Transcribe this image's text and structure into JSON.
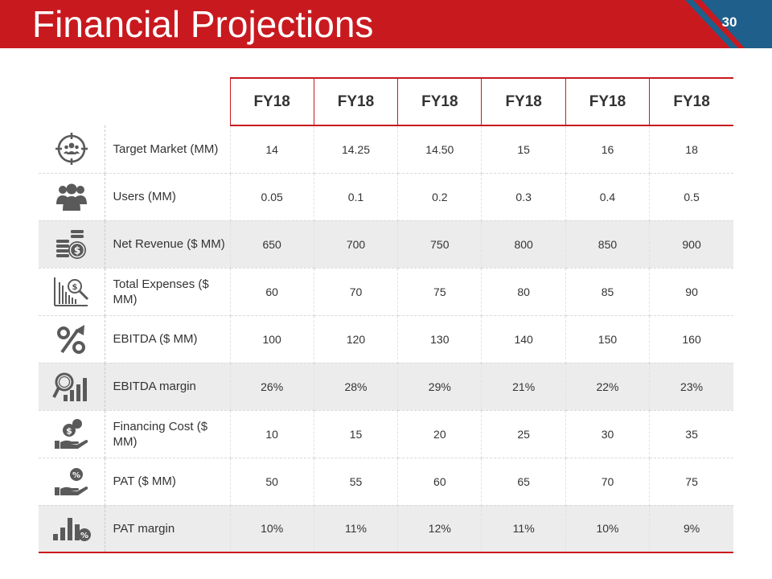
{
  "slide": {
    "title": "Financial Projections",
    "page_number": "30"
  },
  "colors": {
    "brand_red": "#c8191f",
    "corner_blue": "#1f5f8b",
    "shade_gray": "#ececec",
    "icon_gray": "#5a5a5a"
  },
  "table": {
    "columns": [
      "FY18",
      "FY18",
      "FY18",
      "FY18",
      "FY18",
      "FY18"
    ],
    "rows": [
      {
        "icon": "target-audience-icon",
        "label": "Target Market (MM)",
        "values": [
          "14",
          "14.25",
          "14.50",
          "15",
          "16",
          "18"
        ]
      },
      {
        "icon": "users-group-icon",
        "label": "Users (MM)",
        "values": [
          "0.05",
          "0.1",
          "0.2",
          "0.3",
          "0.4",
          "0.5"
        ]
      },
      {
        "icon": "coin-stack-icon",
        "label": "Net Revenue ($ MM)",
        "values": [
          "650",
          "700",
          "750",
          "800",
          "850",
          "900"
        ]
      },
      {
        "icon": "expense-chart-icon",
        "label": "Total Expenses ($ MM)",
        "values": [
          "60",
          "70",
          "75",
          "80",
          "85",
          "90"
        ]
      },
      {
        "icon": "percent-arrow-icon",
        "label": "EBITDA ($ MM)",
        "values": [
          "100",
          "120",
          "130",
          "140",
          "150",
          "160"
        ]
      },
      {
        "icon": "magnifier-bar-chart-icon",
        "label": "EBITDA margin",
        "values": [
          "26%",
          "28%",
          "29%",
          "21%",
          "22%",
          "23%"
        ]
      },
      {
        "icon": "hand-money-icon",
        "label": "Financing Cost ($ MM)",
        "values": [
          "10",
          "15",
          "20",
          "25",
          "30",
          "35"
        ]
      },
      {
        "icon": "hand-percent-icon",
        "label": "PAT ($ MM)",
        "values": [
          "50",
          "55",
          "60",
          "65",
          "70",
          "75"
        ]
      },
      {
        "icon": "bar-chart-percent-icon",
        "label": "PAT margin",
        "values": [
          "10%",
          "11%",
          "12%",
          "11%",
          "10%",
          "9%"
        ]
      }
    ]
  }
}
